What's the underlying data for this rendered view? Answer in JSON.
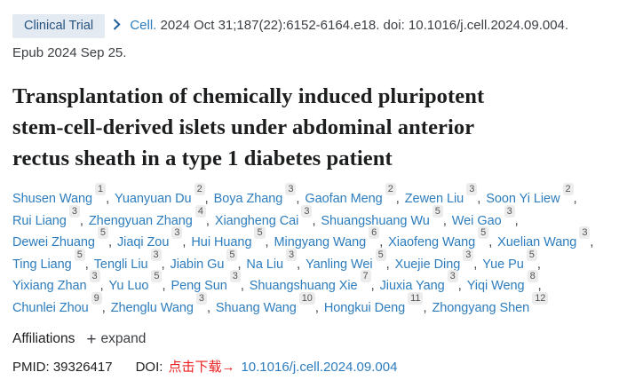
{
  "colors": {
    "badge_bg": "#e4eaf1",
    "badge_text": "#26537f",
    "chevron_blue": "#1f5f99",
    "link_blue": "#2d7dbe",
    "body_text": "#3c3f44",
    "title_text": "#1c1d1e",
    "sup_badge_bg": "#ececec",
    "sup_badge_text": "#555555",
    "download_red": "#ea1e1e"
  },
  "header": {
    "badge_label": "Clinical Trial",
    "journal_link": "Cell.",
    "citation_rest": "2024 Oct 31;187(22):6152-6164.e18. doi: 10.1016/j.cell.2024.09.004.",
    "epub": "Epub 2024 Sep 25."
  },
  "title": {
    "full": "Transplantation of chemically induced pluripotent stem-cell-derived islets under abdominal anterior rectus sheath in a type 1 diabetes patient",
    "lines": [
      "Transplantation of chemically induced pluripotent",
      "stem-cell-derived islets under abdominal anterior",
      "rectus sheath in a type 1 diabetes patient"
    ]
  },
  "authors_separator": ", ",
  "authors": [
    {
      "name": "Shusen Wang",
      "aff": "1"
    },
    {
      "name": "Yuanyuan Du",
      "aff": "2"
    },
    {
      "name": "Boya Zhang",
      "aff": "3"
    },
    {
      "name": "Gaofan Meng",
      "aff": "2"
    },
    {
      "name": "Zewen Liu",
      "aff": "3"
    },
    {
      "name": "Soon Yi Liew",
      "aff": "2",
      "break_after": true
    },
    {
      "name": "Rui Liang",
      "aff": "3"
    },
    {
      "name": "Zhengyuan Zhang",
      "aff": "4"
    },
    {
      "name": "Xiangheng Cai",
      "aff": "3"
    },
    {
      "name": "Shuangshuang Wu",
      "aff": "5"
    },
    {
      "name": "Wei Gao",
      "aff": "3",
      "break_after": true
    },
    {
      "name": "Dewei Zhuang",
      "aff": "5"
    },
    {
      "name": "Jiaqi Zou",
      "aff": "3"
    },
    {
      "name": "Hui Huang",
      "aff": "5"
    },
    {
      "name": "Mingyang Wang",
      "aff": "6"
    },
    {
      "name": "Xiaofeng Wang",
      "aff": "5"
    },
    {
      "name": "Xuelian Wang",
      "aff": "3",
      "break_after": true
    },
    {
      "name": "Ting Liang",
      "aff": "5"
    },
    {
      "name": "Tengli Liu",
      "aff": "3"
    },
    {
      "name": "Jiabin Gu",
      "aff": "5"
    },
    {
      "name": "Na Liu",
      "aff": "3"
    },
    {
      "name": "Yanling Wei",
      "aff": "5"
    },
    {
      "name": "Xuejie Ding",
      "aff": "3"
    },
    {
      "name": "Yue Pu",
      "aff": "5",
      "break_after": true
    },
    {
      "name": "Yixiang Zhan",
      "aff": "3"
    },
    {
      "name": "Yu Luo",
      "aff": "5"
    },
    {
      "name": "Peng Sun",
      "aff": "3"
    },
    {
      "name": "Shuangshuang Xie",
      "aff": "7"
    },
    {
      "name": "Jiuxia Yang",
      "aff": "3"
    },
    {
      "name": "Yiqi Weng",
      "aff": "8",
      "break_after": true
    },
    {
      "name": "Chunlei Zhou",
      "aff": "9"
    },
    {
      "name": "Zhenglu Wang",
      "aff": "3"
    },
    {
      "name": "Shuang Wang",
      "aff": "10"
    },
    {
      "name": "Hongkui Deng",
      "aff": "11"
    },
    {
      "name": "Zhongyang Shen",
      "aff": "12"
    }
  ],
  "affiliations": {
    "label": "Affiliations",
    "expand_icon": "+",
    "expand_label": "expand"
  },
  "identifiers": {
    "pmid_label": "PMID:",
    "pmid_value": "39326417",
    "doi_label": "DOI:",
    "download_label": "点击下载→",
    "doi_link": "10.1016/j.cell.2024.09.004"
  }
}
